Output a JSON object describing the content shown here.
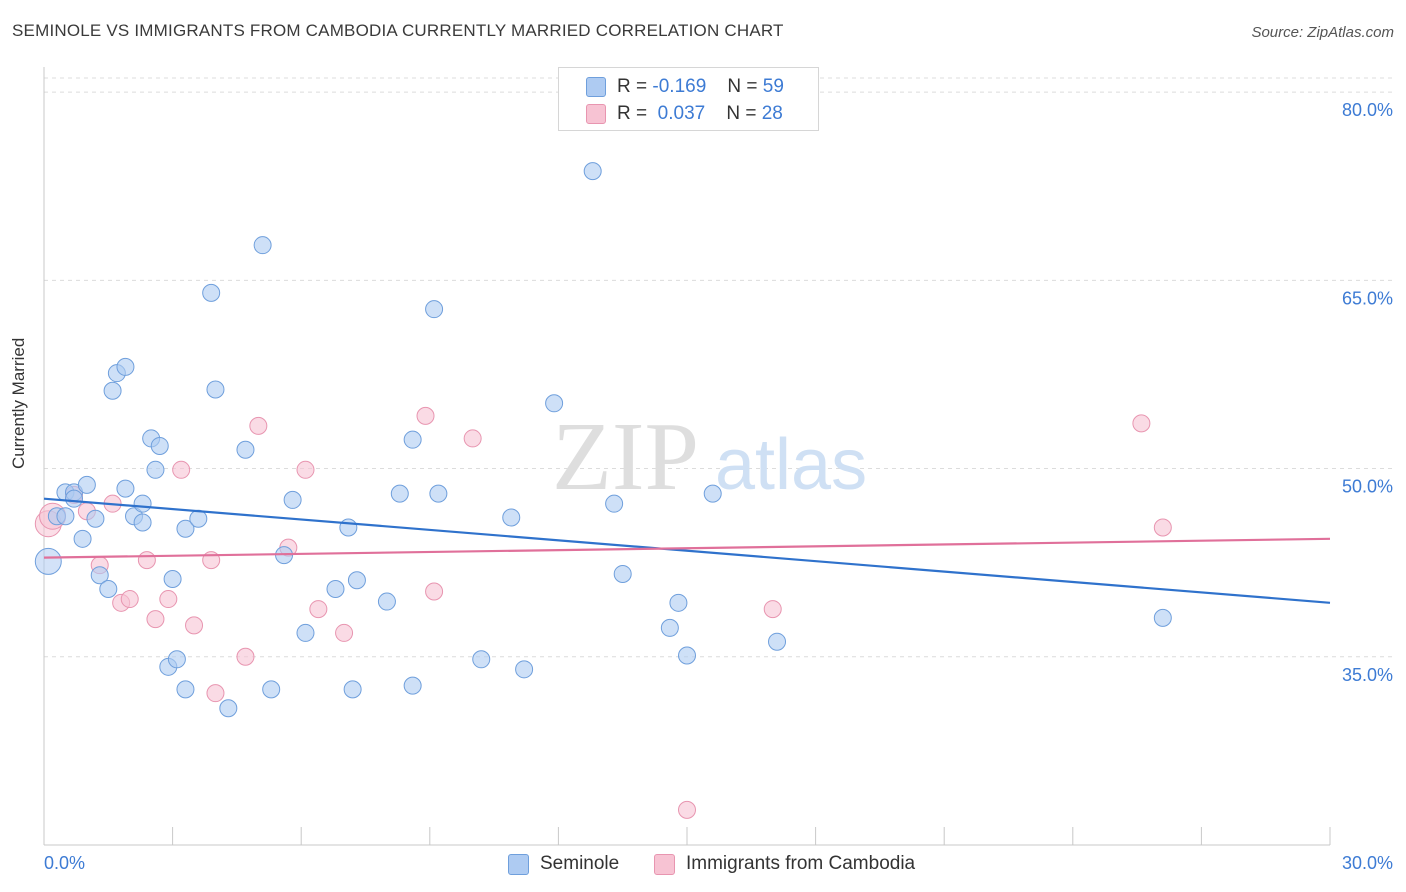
{
  "header": {
    "title": "SEMINOLE VS IMMIGRANTS FROM CAMBODIA CURRENTLY MARRIED CORRELATION CHART",
    "source": "Source: ZipAtlas.com"
  },
  "watermark": {
    "zip": "ZIP",
    "atlas": "atlas"
  },
  "legend_top": {
    "rows": [
      {
        "r_label": "R =",
        "r_value": "-0.169",
        "n_label": "N =",
        "n_value": "59"
      },
      {
        "r_label": "R =",
        "r_value": " 0.037",
        "n_label": "N =",
        "n_value": "28"
      }
    ]
  },
  "legend_bottom": [
    "Seminole",
    "Immigrants from Cambodia"
  ],
  "colors": {
    "seminole_fill": "#aecbf2",
    "seminole_stroke": "#6f9fdc",
    "seminole_line": "#2f72cc",
    "cambodia_fill": "#f7c3d3",
    "cambodia_stroke": "#e895b0",
    "cambodia_line": "#e0709a",
    "tick_label": "#3d7bd4",
    "grid": "#dcdcdc"
  },
  "chart_data": {
    "type": "scatter",
    "title": "SEMINOLE VS IMMIGRANTS FROM CAMBODIA CURRENTLY MARRIED CORRELATION CHART",
    "xlabel": "",
    "ylabel": "Currently Married",
    "xlim": [
      0,
      30
    ],
    "ylim": [
      20,
      82
    ],
    "x_tick_labels": [
      {
        "value": 0,
        "label": "0.0%"
      },
      {
        "value": 30,
        "label": "30.0%"
      }
    ],
    "y_ticks": [
      {
        "value": 35,
        "label": "35.0%"
      },
      {
        "value": 50,
        "label": "50.0%"
      },
      {
        "value": 65,
        "label": "65.0%"
      },
      {
        "value": 80,
        "label": "80.0%"
      }
    ],
    "grid": true,
    "series": [
      {
        "name": "Seminole",
        "r": -0.169,
        "n": 59,
        "trend": {
          "x": [
            0,
            30
          ],
          "y": [
            47.6,
            39.3
          ]
        },
        "points": [
          [
            0.3,
            46.2
          ],
          [
            0.5,
            48.1
          ],
          [
            0.7,
            48.1
          ],
          [
            1.0,
            48.7
          ],
          [
            0.9,
            44.4
          ],
          [
            1.2,
            46.0
          ],
          [
            1.3,
            41.5
          ],
          [
            1.5,
            40.4
          ],
          [
            1.6,
            56.2
          ],
          [
            1.7,
            57.6
          ],
          [
            1.9,
            48.4
          ],
          [
            1.9,
            58.1
          ],
          [
            2.1,
            46.2
          ],
          [
            2.3,
            45.7
          ],
          [
            2.3,
            47.2
          ],
          [
            2.5,
            52.4
          ],
          [
            2.6,
            49.9
          ],
          [
            2.7,
            51.8
          ],
          [
            2.9,
            34.2
          ],
          [
            3.0,
            41.2
          ],
          [
            3.1,
            34.8
          ],
          [
            3.3,
            32.4
          ],
          [
            3.3,
            45.2
          ],
          [
            3.6,
            46.0
          ],
          [
            3.9,
            64.0
          ],
          [
            4.0,
            56.3
          ],
          [
            4.3,
            30.9
          ],
          [
            4.7,
            51.5
          ],
          [
            5.1,
            67.8
          ],
          [
            5.3,
            32.4
          ],
          [
            5.6,
            43.1
          ],
          [
            5.8,
            47.5
          ],
          [
            6.1,
            36.9
          ],
          [
            7.1,
            45.3
          ],
          [
            6.8,
            40.4
          ],
          [
            7.2,
            32.4
          ],
          [
            7.3,
            41.1
          ],
          [
            8.0,
            39.4
          ],
          [
            8.3,
            48.0
          ],
          [
            8.6,
            32.7
          ],
          [
            8.6,
            52.3
          ],
          [
            9.1,
            62.7
          ],
          [
            9.2,
            48.0
          ],
          [
            10.2,
            34.8
          ],
          [
            10.9,
            46.1
          ],
          [
            11.2,
            34.0
          ],
          [
            11.9,
            55.2
          ],
          [
            12.8,
            73.7
          ],
          [
            13.3,
            47.2
          ],
          [
            13.5,
            41.6
          ],
          [
            14.6,
            37.3
          ],
          [
            14.8,
            39.3
          ],
          [
            15.0,
            35.1
          ],
          [
            15.6,
            48.0
          ],
          [
            17.1,
            36.2
          ],
          [
            26.1,
            38.1
          ],
          [
            0.1,
            42.6
          ],
          [
            0.5,
            46.2
          ],
          [
            0.7,
            47.6
          ]
        ]
      },
      {
        "name": "Immigrants from Cambodia",
        "r": 0.037,
        "n": 28,
        "trend": {
          "x": [
            0,
            30
          ],
          "y": [
            42.9,
            44.4
          ]
        },
        "points": [
          [
            0.1,
            45.6
          ],
          [
            0.7,
            47.9
          ],
          [
            1.0,
            46.6
          ],
          [
            1.3,
            42.3
          ],
          [
            1.6,
            47.2
          ],
          [
            1.8,
            39.3
          ],
          [
            2.0,
            39.6
          ],
          [
            2.4,
            42.7
          ],
          [
            2.6,
            38.0
          ],
          [
            2.9,
            39.6
          ],
          [
            3.2,
            49.9
          ],
          [
            3.5,
            37.5
          ],
          [
            3.9,
            42.7
          ],
          [
            4.0,
            32.1
          ],
          [
            4.7,
            35.0
          ],
          [
            5.0,
            53.4
          ],
          [
            5.7,
            43.7
          ],
          [
            6.1,
            49.9
          ],
          [
            6.4,
            38.8
          ],
          [
            7.0,
            36.9
          ],
          [
            8.9,
            54.2
          ],
          [
            9.1,
            40.2
          ],
          [
            10.0,
            52.4
          ],
          [
            15.0,
            22.8
          ],
          [
            17.0,
            38.8
          ],
          [
            25.6,
            53.6
          ],
          [
            26.1,
            45.3
          ],
          [
            0.2,
            46.2
          ]
        ]
      }
    ]
  }
}
